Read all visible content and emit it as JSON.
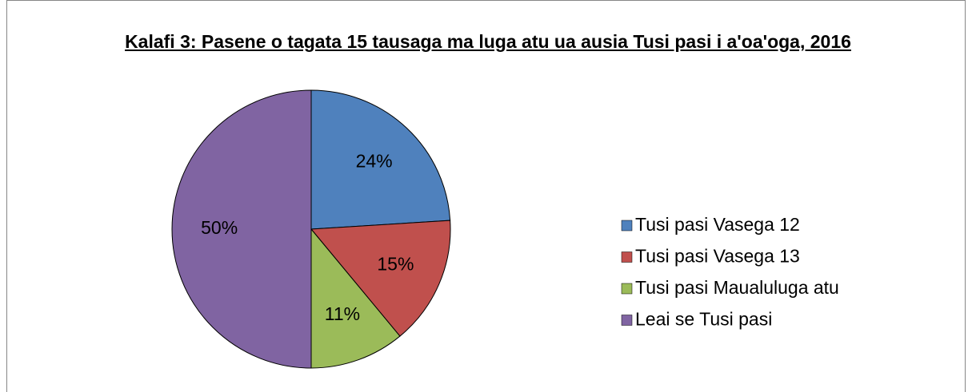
{
  "chart_data": {
    "type": "pie",
    "title": "Kalafi 3: Pasene o tagata 15 tausaga ma luga atu ua ausia Tusi pasi i a'oa'oga, 2016",
    "categories": [
      "Tusi pasi Vasega 12",
      "Tusi pasi Vasega 13",
      "Tusi pasi Maualuluga atu",
      "Leai se Tusi pasi"
    ],
    "values": [
      24,
      15,
      11,
      50
    ],
    "value_labels": [
      "24%",
      "15%",
      "11%",
      "50%"
    ],
    "colors": [
      "#4f81bd",
      "#c0504d",
      "#9bbb59",
      "#8064a2"
    ],
    "legend": "right"
  }
}
